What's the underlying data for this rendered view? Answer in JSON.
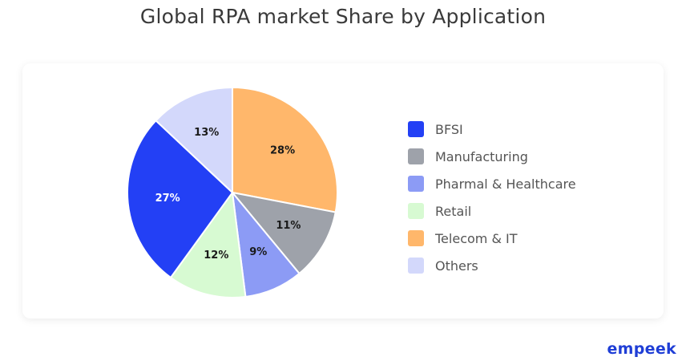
{
  "page": {
    "title": "Global RPA market Share by Application",
    "brand": "empeek"
  },
  "chart_data": {
    "type": "pie",
    "title": "Global RPA market Share by Application",
    "legend_position": "right",
    "slices": [
      {
        "label": "Telecom & IT",
        "value": 28,
        "display": "28%",
        "color": "#FFB76B",
        "label_color": "#1a1a1a"
      },
      {
        "label": "Manufacturing",
        "value": 11,
        "display": "11%",
        "color": "#9EA2AA",
        "label_color": "#1a1a1a"
      },
      {
        "label": "Pharmal & Healthcare",
        "value": 9,
        "display": "9%",
        "color": "#8C9BF5",
        "label_color": "#1a1a1a"
      },
      {
        "label": "Retail",
        "value": 12,
        "display": "12%",
        "color": "#D7FAD2",
        "label_color": "#1a1a1a"
      },
      {
        "label": "BFSI",
        "value": 27,
        "display": "27%",
        "color": "#2340F5",
        "label_color": "#ffffff"
      },
      {
        "label": "Others",
        "value": 13,
        "display": "13%",
        "color": "#D3D8FB",
        "label_color": "#1a1a1a"
      }
    ],
    "legend": [
      {
        "label": "BFSI",
        "color": "#2340F5"
      },
      {
        "label": "Manufacturing",
        "color": "#9EA2AA"
      },
      {
        "label": "Pharmal & Healthcare",
        "color": "#8C9BF5"
      },
      {
        "label": "Retail",
        "color": "#D7FAD2"
      },
      {
        "label": "Telecom & IT",
        "color": "#FFB76B"
      },
      {
        "label": "Others",
        "color": "#D3D8FB"
      }
    ]
  }
}
